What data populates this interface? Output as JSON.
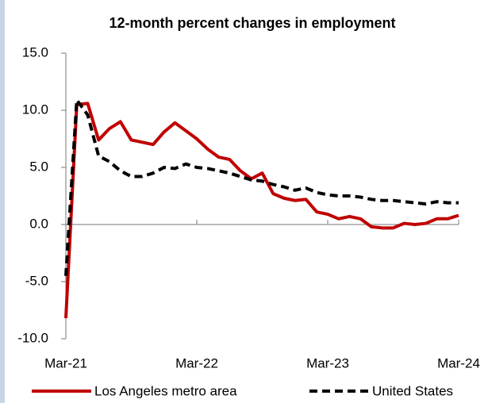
{
  "chart_data": {
    "type": "line",
    "title": "12-month percent changes in employment",
    "categories": [
      "Mar-21",
      null,
      null,
      null,
      null,
      null,
      null,
      null,
      null,
      null,
      null,
      null,
      "Mar-22",
      null,
      null,
      null,
      null,
      null,
      null,
      null,
      null,
      null,
      null,
      null,
      "Mar-23",
      null,
      null,
      null,
      null,
      null,
      null,
      null,
      null,
      null,
      null,
      null,
      "Mar-24"
    ],
    "series": [
      {
        "name": "Los Angeles metro area",
        "color": "#c00000",
        "dash": false,
        "values": [
          -8.2,
          10.5,
          10.6,
          7.4,
          8.4,
          9.0,
          7.4,
          7.2,
          7.0,
          8.1,
          8.9,
          8.2,
          7.5,
          6.6,
          5.9,
          5.7,
          4.7,
          4.0,
          4.5,
          2.7,
          2.3,
          2.1,
          2.2,
          1.1,
          0.9,
          0.5,
          0.7,
          0.5,
          -0.2,
          -0.3,
          -0.3,
          0.1,
          0.0,
          0.1,
          0.5,
          0.5,
          0.8
        ]
      },
      {
        "name": "United States",
        "color": "#000000",
        "dash": true,
        "values": [
          -4.5,
          10.9,
          9.6,
          6.0,
          5.5,
          4.7,
          4.2,
          4.2,
          4.5,
          5.0,
          4.9,
          5.3,
          5.0,
          4.9,
          4.7,
          4.5,
          4.2,
          3.9,
          3.8,
          3.5,
          3.3,
          3.0,
          3.2,
          2.8,
          2.6,
          2.5,
          2.5,
          2.4,
          2.2,
          2.1,
          2.1,
          2.0,
          1.9,
          1.8,
          2.0,
          1.9,
          1.9
        ]
      }
    ],
    "ylim": [
      -10,
      15
    ],
    "yticks": [
      {
        "value": -10,
        "label": "-10.0"
      },
      {
        "value": -5,
        "label": "-5.0"
      },
      {
        "value": 0,
        "label": "0.0"
      },
      {
        "value": 5,
        "label": "5.0"
      },
      {
        "value": 10,
        "label": "10.0"
      },
      {
        "value": 15,
        "label": "15.0"
      }
    ],
    "grid": false
  }
}
